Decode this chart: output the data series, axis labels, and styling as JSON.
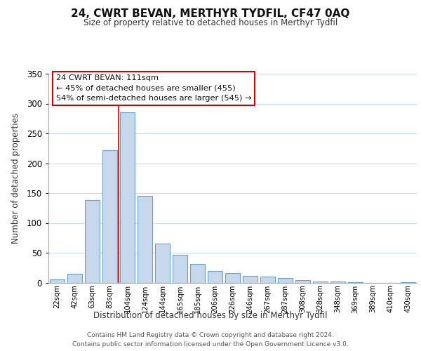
{
  "title": "24, CWRT BEVAN, MERTHYR TYDFIL, CF47 0AQ",
  "subtitle": "Size of property relative to detached houses in Merthyr Tydfil",
  "xlabel": "Distribution of detached houses by size in Merthyr Tydfil",
  "ylabel": "Number of detached properties",
  "bar_labels": [
    "22sqm",
    "42sqm",
    "63sqm",
    "83sqm",
    "104sqm",
    "124sqm",
    "144sqm",
    "165sqm",
    "185sqm",
    "206sqm",
    "226sqm",
    "246sqm",
    "267sqm",
    "287sqm",
    "308sqm",
    "328sqm",
    "348sqm",
    "369sqm",
    "389sqm",
    "410sqm",
    "430sqm"
  ],
  "bar_values": [
    5,
    15,
    138,
    222,
    285,
    145,
    65,
    46,
    31,
    19,
    16,
    11,
    10,
    8,
    4,
    2,
    2,
    1,
    0,
    0,
    1
  ],
  "bar_color": "#c8d8ec",
  "bar_edge_color": "#6a9fc8",
  "highlight_bar_index": 4,
  "vline_color": "#cc0000",
  "vline_x": 3.5,
  "ylim": [
    0,
    350
  ],
  "yticks": [
    0,
    50,
    100,
    150,
    200,
    250,
    300,
    350
  ],
  "annotation_title": "24 CWRT BEVAN: 111sqm",
  "annotation_line1": "← 45% of detached houses are smaller (455)",
  "annotation_line2": "54% of semi-detached houses are larger (545) →",
  "annotation_box_facecolor": "#ffffff",
  "annotation_box_edgecolor": "#cc0000",
  "footer1": "Contains HM Land Registry data © Crown copyright and database right 2024.",
  "footer2": "Contains public sector information licensed under the Open Government Licence v3.0.",
  "background_color": "#ffffff",
  "grid_color": "#c8d8ec"
}
